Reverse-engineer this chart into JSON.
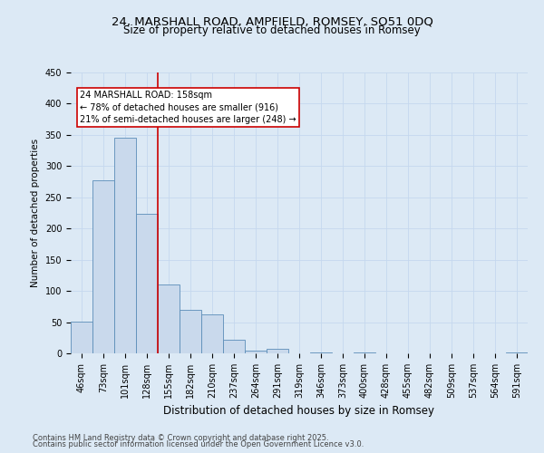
{
  "title_line1": "24, MARSHALL ROAD, AMPFIELD, ROMSEY, SO51 0DQ",
  "title_line2": "Size of property relative to detached houses in Romsey",
  "xlabel": "Distribution of detached houses by size in Romsey",
  "ylabel": "Number of detached properties",
  "categories": [
    "46sqm",
    "73sqm",
    "101sqm",
    "128sqm",
    "155sqm",
    "182sqm",
    "210sqm",
    "237sqm",
    "264sqm",
    "291sqm",
    "319sqm",
    "346sqm",
    "373sqm",
    "400sqm",
    "428sqm",
    "455sqm",
    "482sqm",
    "509sqm",
    "537sqm",
    "564sqm",
    "591sqm"
  ],
  "values": [
    51,
    277,
    346,
    224,
    110,
    70,
    63,
    22,
    5,
    7,
    0,
    2,
    0,
    1,
    0,
    0,
    0,
    0,
    0,
    0,
    2
  ],
  "bar_color": "#c9d9ec",
  "bar_edge_color": "#5b8db8",
  "vline_index": 4,
  "vline_color": "#cc0000",
  "annotation_title": "24 MARSHALL ROAD: 158sqm",
  "annotation_line2": "← 78% of detached houses are smaller (916)",
  "annotation_line3": "21% of semi-detached houses are larger (248) →",
  "annotation_box_color": "#cc0000",
  "annotation_bg": "#ffffff",
  "grid_color": "#c5d8ee",
  "background_color": "#dce9f5",
  "footer_line1": "Contains HM Land Registry data © Crown copyright and database right 2025.",
  "footer_line2": "Contains public sector information licensed under the Open Government Licence v3.0.",
  "ylim": [
    0,
    450
  ],
  "yticks": [
    0,
    50,
    100,
    150,
    200,
    250,
    300,
    350,
    400,
    450
  ],
  "title1_fontsize": 9.5,
  "title2_fontsize": 8.5,
  "xlabel_fontsize": 8.5,
  "ylabel_fontsize": 7.5,
  "tick_fontsize": 7,
  "footer_fontsize": 6,
  "ann_fontsize": 7
}
